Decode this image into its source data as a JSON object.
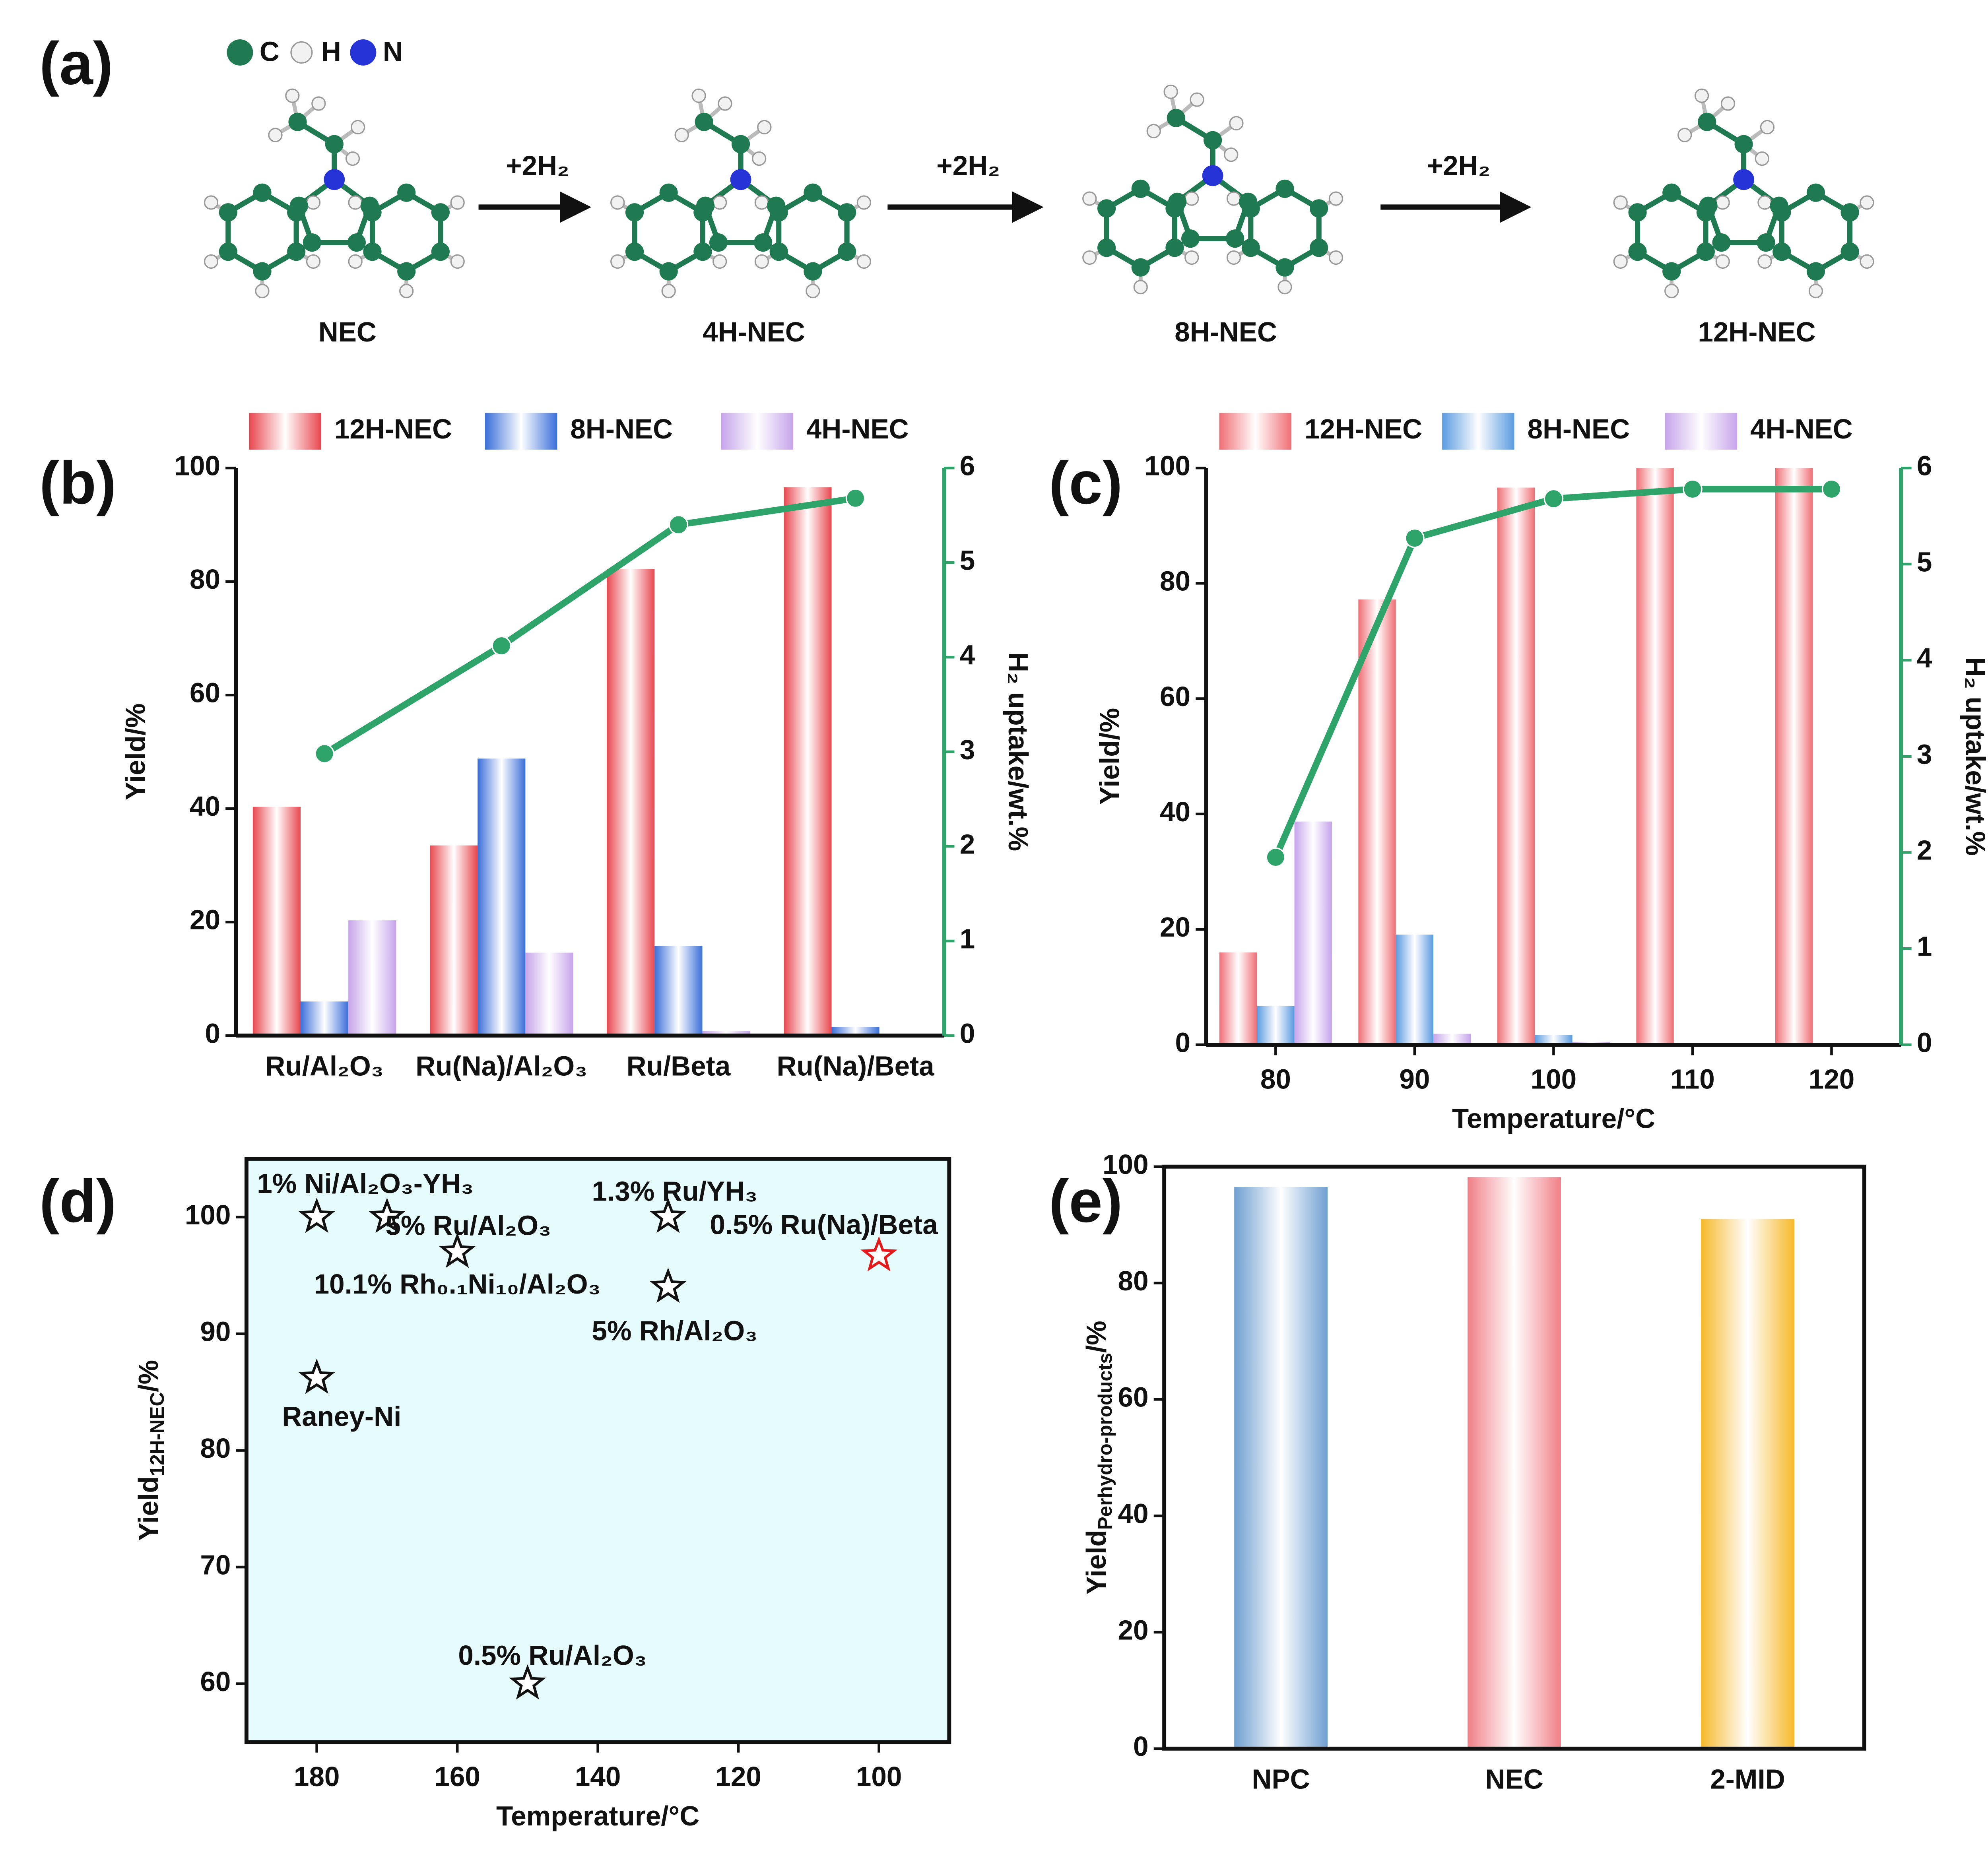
{
  "scheme": {
    "panel": "(a)",
    "atoms": [
      "C",
      "H",
      "N"
    ],
    "molecules": [
      "NEC",
      "4H-NEC",
      "8H-NEC",
      "12H-NEC"
    ],
    "arrows": [
      "+2H₂",
      "+2H₂",
      "+2H₂"
    ]
  },
  "chart_data": [
    {
      "type": "bar",
      "panel": "(b)",
      "categories": [
        "Ru/Al₂O₃",
        "Ru(Na)/Al₂O₃",
        "Ru/Beta",
        "Ru(Na)/Beta"
      ],
      "ylabel": "Yield/%",
      "y2label": "H₂ uptake/wt.%",
      "ylim": [
        0,
        100
      ],
      "yticks": [
        0,
        20,
        40,
        60,
        80,
        100
      ],
      "y2lim": [
        0,
        6
      ],
      "y2ticks": [
        0,
        1,
        2,
        3,
        4,
        5,
        6
      ],
      "series": [
        {
          "name": "12H-NEC",
          "color": "#e8474f",
          "values": [
            40.3,
            33.5,
            82.2,
            96.6
          ]
        },
        {
          "name": "8H-NEC",
          "color": "#3a6fd8",
          "values": [
            6,
            48.8,
            15.8,
            1.5
          ]
        },
        {
          "name": "4H-NEC",
          "color": "#c6a4ea",
          "values": [
            20.3,
            14.6,
            0.8,
            0.3
          ]
        },
        {
          "type": "line",
          "axis": "y2",
          "color": "#2ea36a",
          "values": [
            2.98,
            4.12,
            5.4,
            5.68
          ]
        }
      ]
    },
    {
      "type": "bar",
      "panel": "(c)",
      "x": [
        80,
        90,
        100,
        110,
        120
      ],
      "xlim": [
        75,
        125
      ],
      "xticks": [
        80,
        90,
        100,
        110,
        120
      ],
      "xlabel": "Temperature/°C",
      "ylabel": "Yield/%",
      "y2label": "H₂ uptake/wt.%",
      "ylim": [
        0,
        100
      ],
      "yticks": [
        0,
        20,
        40,
        60,
        80,
        100
      ],
      "y2lim": [
        0,
        6
      ],
      "y2ticks": [
        0,
        1,
        2,
        3,
        4,
        5,
        6
      ],
      "series": [
        {
          "name": "12H-NEC",
          "color": "#ef6f76",
          "values": [
            16,
            77.2,
            96.6,
            100,
            100
          ]
        },
        {
          "name": "8H-NEC",
          "color": "#5a9be0",
          "values": [
            6.7,
            19.1,
            1.7,
            0,
            0
          ]
        },
        {
          "name": "4H-NEC",
          "color": "#c6a4ea",
          "values": [
            38.7,
            1.9,
            0.5,
            0,
            0
          ]
        },
        {
          "type": "line",
          "axis": "y2",
          "color": "#2ea36a",
          "values": [
            1.95,
            5.27,
            5.68,
            5.78,
            5.78
          ]
        }
      ]
    },
    {
      "type": "scatter",
      "panel": "(d)",
      "xlabel": "Temperature/°C",
      "ylabel": [
        "Yield",
        "12H-NEC",
        "/%"
      ],
      "xlim": [
        190,
        90
      ],
      "xticks": [
        180,
        160,
        140,
        120,
        100
      ],
      "ylim": [
        55,
        105
      ],
      "yticks": [
        60,
        70,
        80,
        90,
        100
      ],
      "background": "#e6fbfb",
      "x": [
        180,
        170,
        160,
        130,
        130,
        100,
        180,
        150
      ],
      "y": [
        100,
        100,
        97,
        100,
        94,
        96.7,
        86.2,
        60
      ],
      "labels": [
        "1% Ni/Al₂O₃-YH₃",
        "5% Ru/Al₂O₃",
        "10.1% Rh₀.₁Ni₁₀/Al₂O₃",
        "1.3% Ru/YH₃",
        "5% Rh/Al₂O₃",
        "0.5% Ru(Na)/Beta",
        "Raney-Ni",
        "0.5% Ru/Al₂O₃"
      ],
      "colors": [
        "#111111",
        "#111111",
        "#111111",
        "#111111",
        "#111111",
        "#e31a1c",
        "#111111",
        "#111111"
      ]
    },
    {
      "type": "bar",
      "panel": "(e)",
      "categories": [
        "NPC",
        "NEC",
        "2-MID"
      ],
      "ylabel": [
        "Yield",
        "Perhydro-products",
        "/%"
      ],
      "ylim": [
        0,
        100
      ],
      "yticks": [
        0,
        20,
        40,
        60,
        80,
        100
      ],
      "values": [
        96.5,
        98.2,
        91
      ],
      "colors": [
        "#6f9fd0",
        "#f07f87",
        "#f6b92a"
      ]
    }
  ]
}
